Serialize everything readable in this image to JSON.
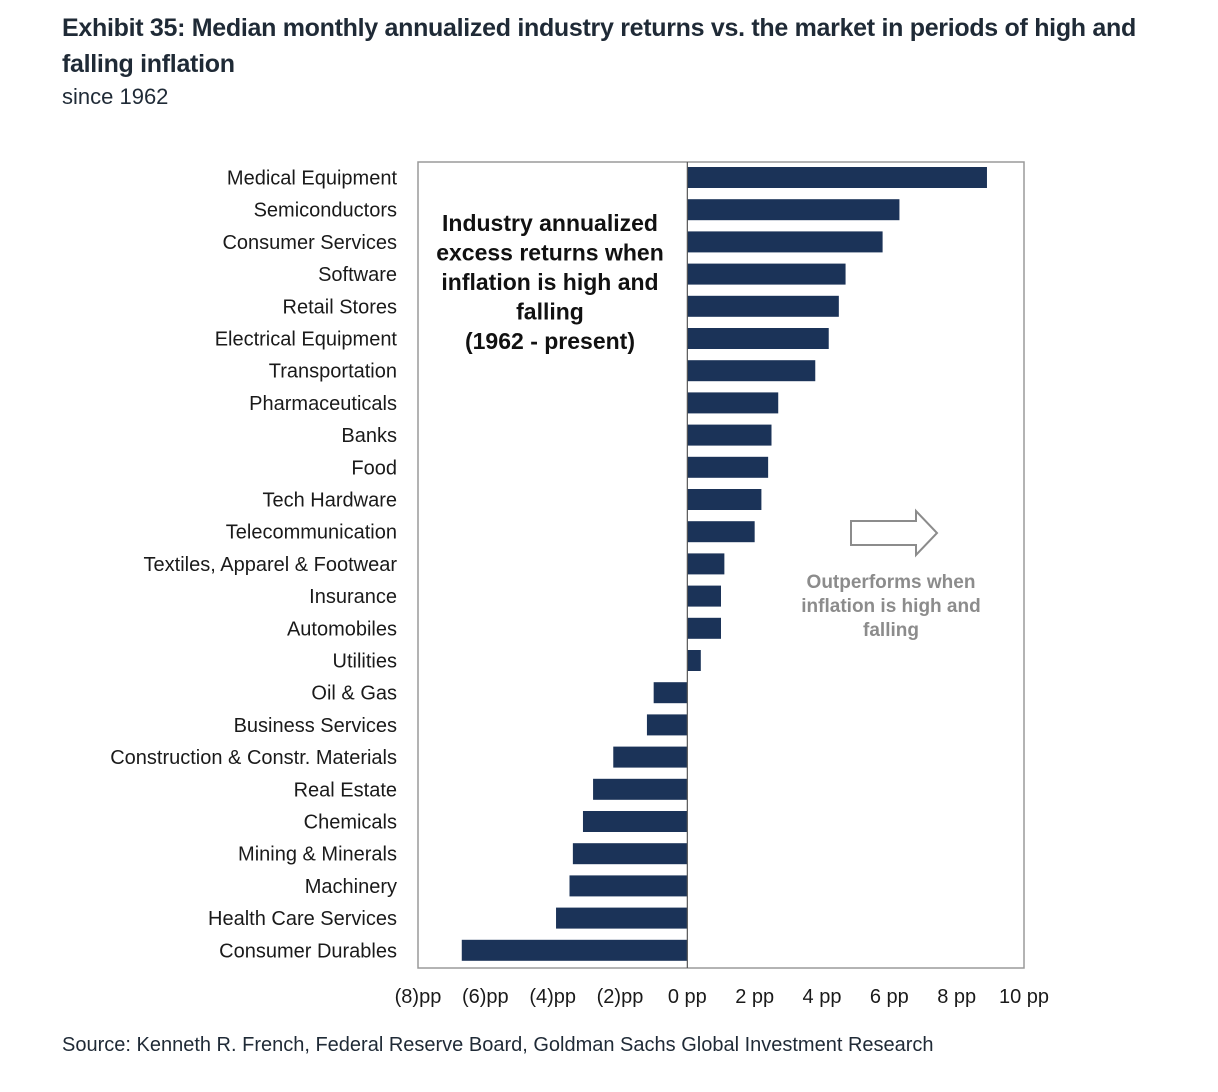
{
  "header": {
    "title": "Exhibit 35: Median monthly annualized industry returns vs. the market in periods of high and falling inflation",
    "subtitle": "since 1962"
  },
  "footer": {
    "source": "Source: Kenneth R. French, Federal Reserve Board, Goldman Sachs Global Investment Research"
  },
  "chart_data": {
    "type": "bar",
    "orientation": "horizontal",
    "title_lines": [
      "Industry annualized",
      "excess returns when",
      "inflation is high and",
      "falling",
      "(1962 - present)"
    ],
    "annotation_lines": [
      "Outperforms when",
      "inflation is high and",
      "falling"
    ],
    "annotation_icon": "right-arrow-icon",
    "categories": [
      "Medical Equipment",
      "Semiconductors",
      "Consumer Services",
      "Software",
      "Retail Stores",
      "Electrical Equipment",
      "Transportation",
      "Pharmaceuticals",
      "Banks",
      "Food",
      "Tech Hardware",
      "Telecommunication",
      "Textiles, Apparel & Footwear",
      "Insurance",
      "Automobiles",
      "Utilities",
      "Oil & Gas",
      "Business Services",
      "Construction & Constr. Materials",
      "Real Estate",
      "Chemicals",
      "Mining & Minerals",
      "Machinery",
      "Health Care Services",
      "Consumer Durables"
    ],
    "values": [
      8.9,
      6.3,
      5.8,
      4.7,
      4.5,
      4.2,
      3.8,
      2.7,
      2.5,
      2.4,
      2.2,
      2.0,
      1.1,
      1.0,
      1.0,
      0.4,
      -1.0,
      -1.2,
      -2.2,
      -2.8,
      -3.1,
      -3.4,
      -3.5,
      -3.9,
      -6.7
    ],
    "xlim": [
      -8,
      10
    ],
    "xticks": [
      -8,
      -6,
      -4,
      -2,
      0,
      2,
      4,
      6,
      8,
      10
    ],
    "xtick_labels": [
      "(8)pp",
      "(6)pp",
      "(4)pp",
      "(2)pp",
      "0 pp",
      "2 pp",
      "4 pp",
      "6 pp",
      "8 pp",
      "10 pp"
    ],
    "bar_color": "#1b3358",
    "annotation_color": "#8c8c8c",
    "grid": false
  }
}
